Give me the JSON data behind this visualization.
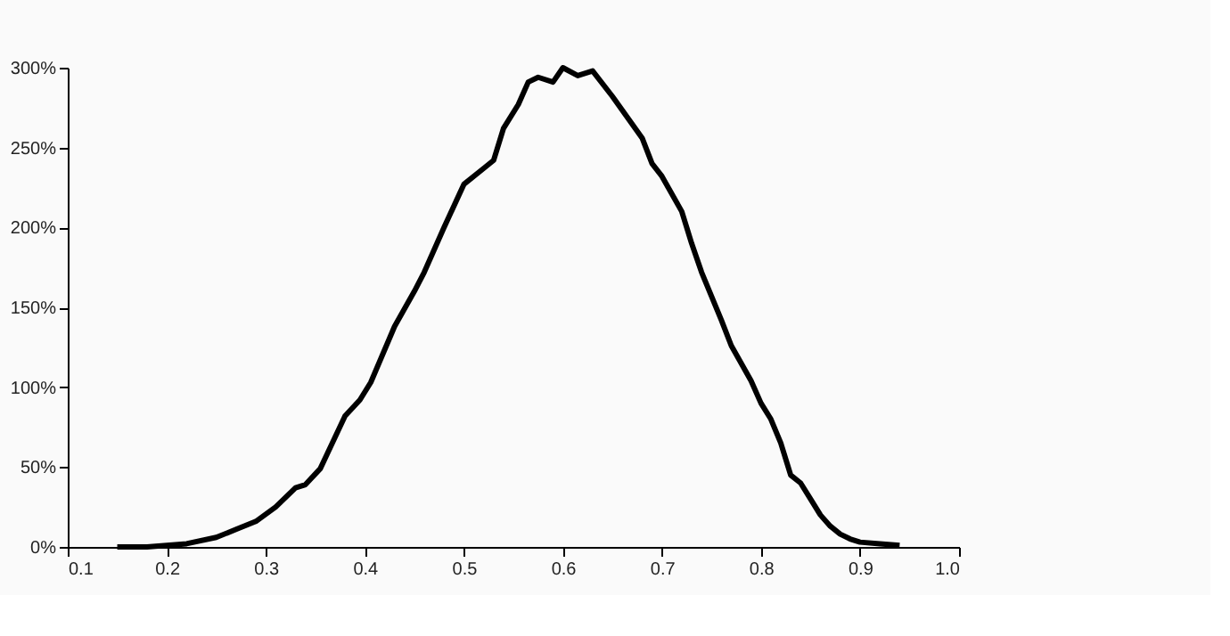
{
  "chart_data": {
    "type": "line",
    "x": [
      0.15,
      0.18,
      0.2,
      0.22,
      0.25,
      0.27,
      0.29,
      0.31,
      0.33,
      0.34,
      0.355,
      0.38,
      0.395,
      0.406,
      0.43,
      0.45,
      0.46,
      0.48,
      0.5,
      0.52,
      0.53,
      0.54,
      0.555,
      0.565,
      0.575,
      0.59,
      0.6,
      0.615,
      0.63,
      0.65,
      0.68,
      0.69,
      0.7,
      0.72,
      0.73,
      0.74,
      0.76,
      0.77,
      0.79,
      0.8,
      0.81,
      0.82,
      0.83,
      0.84,
      0.85,
      0.86,
      0.87,
      0.88,
      0.89,
      0.9,
      0.92,
      0.94
    ],
    "series": [
      {
        "color": "#000000",
        "values": [
          0,
          0,
          1,
          2,
          6,
          11,
          16,
          25,
          37,
          39,
          49,
          82,
          92,
          103,
          138,
          160,
          172,
          200,
          227,
          237,
          242,
          262,
          277,
          291,
          294,
          291,
          300,
          295,
          298,
          282,
          256,
          240,
          232,
          210,
          190,
          172,
          142,
          126,
          104,
          90,
          80,
          65,
          45,
          40,
          30,
          20,
          13,
          8,
          5,
          3,
          2,
          1
        ]
      }
    ],
    "xlim": [
      0.1,
      1.0
    ],
    "xticks": [
      0.1,
      0.2,
      0.3,
      0.4,
      0.5,
      0.6,
      0.7,
      0.8,
      0.9,
      {
        "value": 1.0,
        "label": "1.0"
      }
    ],
    "ylim": [
      0,
      300
    ],
    "yticks": [
      {
        "value": 0,
        "label": "0%"
      },
      {
        "value": 50,
        "label": "50%"
      },
      {
        "value": 100,
        "label": "100%"
      },
      {
        "value": 150,
        "label": "150%"
      },
      {
        "value": 200,
        "label": "200%"
      },
      {
        "value": 250,
        "label": "250%"
      },
      {
        "value": 300,
        "label": "300%"
      }
    ],
    "grid": false,
    "marker": "none",
    "line_style": "solid"
  }
}
